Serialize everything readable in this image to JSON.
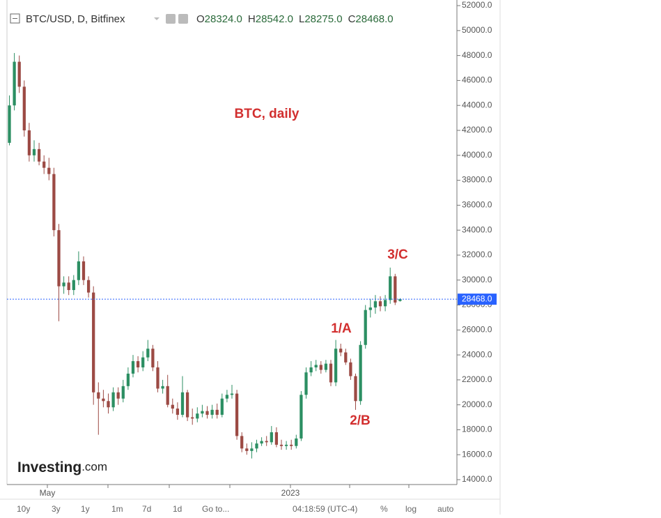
{
  "chart_data": {
    "type": "candlestick",
    "title": "BTC/USD, D, Bitfinex",
    "ohlc_header": {
      "open_label": "O",
      "open": {
        "value": 28324,
        "label": "28324.0"
      },
      "high_label": "H",
      "high": {
        "value": 28542,
        "label": "28542.0"
      },
      "low_label": "L",
      "low": {
        "value": 28275,
        "label": "28275.0"
      },
      "close_label": "C",
      "close": {
        "value": 28468,
        "label": "28468.0"
      }
    },
    "annotations": [
      "BTC, daily",
      "1/A",
      "2/B",
      "3/C"
    ],
    "watermark": {
      "brand": "Investing",
      "suffix": ".com"
    },
    "xtick_labels": [
      "May",
      "2023"
    ],
    "up_color": "#2c8f63",
    "down_color": "#9c4a44",
    "open": [
      41000,
      44000,
      47500,
      45500,
      42000,
      40000,
      40500,
      39500,
      39000,
      38500,
      34000,
      29500,
      29800,
      29200,
      30000,
      31500,
      30000,
      29000,
      21000,
      20500,
      20300,
      19800,
      21000,
      20500,
      21500,
      22500,
      23500,
      23000,
      23800,
      24500,
      23000,
      21300,
      21500,
      20000,
      19700,
      19200,
      21000,
      19000,
      18900,
      19300,
      19500,
      19200,
      19600,
      19200,
      20500,
      20800,
      20900,
      17500,
      16500,
      16300,
      16500,
      16900,
      17100,
      17000,
      17800,
      16800,
      16700,
      16800,
      16700,
      17300,
      20800,
      22600,
      23000,
      23200,
      22800,
      23300,
      21800,
      24500,
      24200,
      23400,
      22300,
      20300,
      24800,
      27600,
      27800,
      28300,
      27900,
      28400,
      30300,
      28324
    ],
    "high": [
      44800,
      48200,
      48000,
      46000,
      42600,
      41200,
      41000,
      40000,
      39800,
      39000,
      34500,
      30300,
      30300,
      30400,
      32300,
      31900,
      30300,
      29500,
      21800,
      21200,
      20900,
      21400,
      21400,
      22000,
      23000,
      24000,
      23900,
      24300,
      25200,
      24800,
      23500,
      22000,
      22400,
      20500,
      20200,
      22300,
      21200,
      19700,
      19800,
      20000,
      19900,
      20000,
      20100,
      20900,
      21200,
      21600,
      21200,
      17800,
      16900,
      17000,
      17200,
      17400,
      17500,
      18300,
      18200,
      17200,
      17100,
      17200,
      17600,
      21100,
      23000,
      23500,
      23600,
      23500,
      23600,
      23600,
      25200,
      24900,
      24500,
      23700,
      22500,
      25100,
      28000,
      28500,
      28800,
      28700,
      28800,
      31000,
      30500,
      28542
    ],
    "low": [
      40800,
      43600,
      45000,
      41500,
      39500,
      39500,
      39200,
      38500,
      38000,
      33500,
      26700,
      28900,
      28800,
      28800,
      29600,
      29600,
      28600,
      20000,
      17600,
      19800,
      19300,
      19500,
      20000,
      20200,
      21200,
      22200,
      22600,
      22700,
      23500,
      22700,
      21000,
      20900,
      19800,
      19300,
      18800,
      19000,
      18700,
      18400,
      18600,
      19000,
      18900,
      18900,
      18900,
      19000,
      20200,
      20500,
      17200,
      16200,
      16000,
      15700,
      16200,
      16700,
      16700,
      16800,
      16600,
      16400,
      16400,
      16400,
      16500,
      17100,
      20500,
      22300,
      22700,
      22500,
      22600,
      21500,
      21500,
      23900,
      23200,
      22000,
      19600,
      20000,
      24500,
      27000,
      27300,
      27500,
      27500,
      28100,
      28000,
      28275
    ],
    "close": [
      44000,
      47500,
      45500,
      42000,
      40000,
      40500,
      39500,
      39000,
      38500,
      34000,
      29500,
      29800,
      29200,
      30000,
      31500,
      30000,
      29000,
      21000,
      20500,
      20300,
      19800,
      21000,
      20500,
      21500,
      22500,
      23500,
      23000,
      23800,
      24500,
      23000,
      21300,
      21500,
      20000,
      19700,
      19200,
      21000,
      19000,
      18900,
      19300,
      19500,
      19200,
      19600,
      19200,
      20500,
      20800,
      20900,
      17500,
      16500,
      16300,
      16500,
      16900,
      17100,
      17000,
      17800,
      16800,
      16700,
      16800,
      16700,
      17300,
      20800,
      22600,
      23000,
      23200,
      22800,
      23300,
      21800,
      24500,
      24200,
      23400,
      22300,
      20300,
      24800,
      27600,
      27800,
      28300,
      27900,
      28400,
      30300,
      28200,
      28468
    ],
    "last_price": {
      "value": 28468,
      "label": "28468.0"
    },
    "last_price_color": "#2962ff",
    "ylim": [
      13610,
      52450
    ],
    "yticks": [
      {
        "value": 14000,
        "label": "14000.0"
      },
      {
        "value": 16000,
        "label": "16000.0"
      },
      {
        "value": 18000,
        "label": "18000.0"
      },
      {
        "value": 20000,
        "label": "20000.0"
      },
      {
        "value": 22000,
        "label": "22000.0"
      },
      {
        "value": 24000,
        "label": "24000.0"
      },
      {
        "value": 26000,
        "label": "26000.0"
      },
      {
        "value": 28000,
        "label": "28000.0"
      },
      {
        "value": 30000,
        "label": "30000.0"
      },
      {
        "value": 32000,
        "label": "32000.0"
      },
      {
        "value": 34000,
        "label": "34000.0"
      },
      {
        "value": 36000,
        "label": "36000.0"
      },
      {
        "value": 38000,
        "label": "38000.0"
      },
      {
        "value": 40000,
        "label": "40000.0"
      },
      {
        "value": 42000,
        "label": "42000.0"
      },
      {
        "value": 44000,
        "label": "44000.0"
      },
      {
        "value": 46000,
        "label": "46000.0"
      },
      {
        "value": 48000,
        "label": "48000.0"
      },
      {
        "value": 50000,
        "label": "50000.0"
      },
      {
        "value": 52000,
        "label": "52000.0"
      }
    ],
    "toolbar": [
      "10y",
      "3y",
      "1y",
      "1m",
      "7d",
      "1d",
      "Go to...",
      "04:18:59 (UTC-4)",
      "%",
      "log",
      "auto"
    ]
  }
}
